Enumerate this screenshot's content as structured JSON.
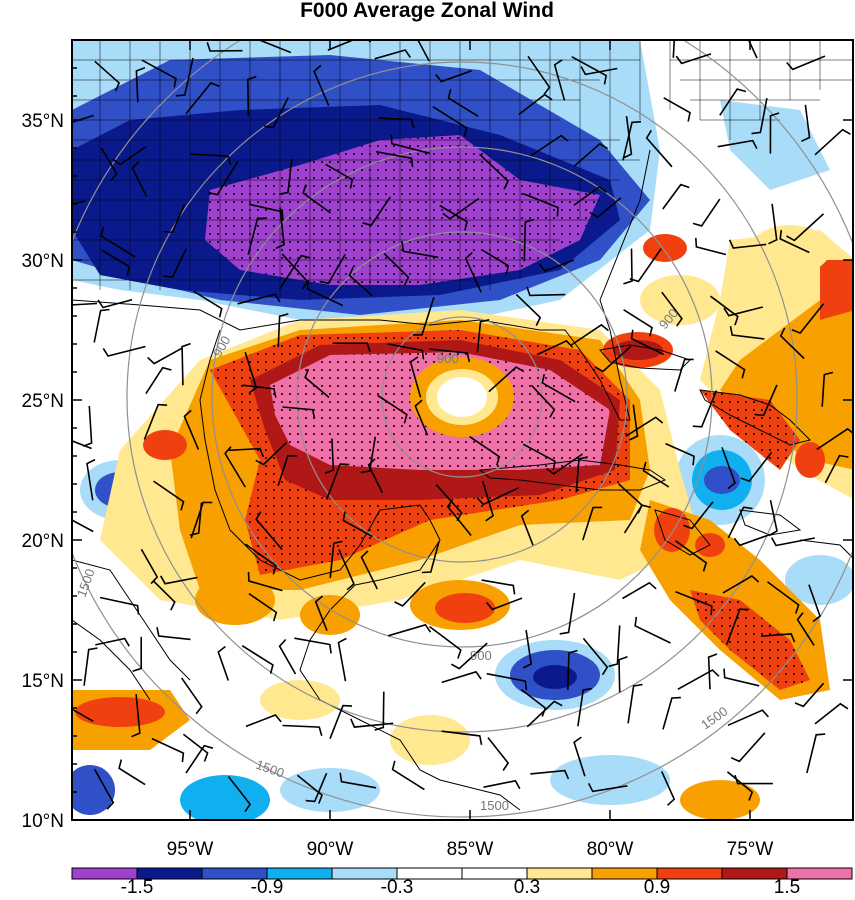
{
  "title": "F000 Average Zonal Wind",
  "axes": {
    "lat_ticks": [
      "35°N",
      "30°N",
      "25°N",
      "20°N",
      "15°N",
      "10°N"
    ],
    "lon_ticks": [
      "95°W",
      "90°W",
      "85°W",
      "80°W",
      "75°W"
    ]
  },
  "colorbar": {
    "colors": [
      "#a040d0",
      "#0a1a8c",
      "#3050c8",
      "#10b0f0",
      "#a8dcf8",
      "#ffffff",
      "#ffffff",
      "#ffe890",
      "#f8a000",
      "#f04010",
      "#b01818",
      "#f070a8"
    ],
    "labels": [
      "-1.5",
      "-0.9",
      "-0.3",
      "0.3",
      "0.9",
      "1.5"
    ]
  },
  "rings": {
    "labels": [
      "900",
      "900",
      "900",
      "900",
      "1500",
      "1500",
      "1500",
      "1500"
    ]
  },
  "legend_colors": {
    "coast": "#000000",
    "ring": "#909090"
  }
}
